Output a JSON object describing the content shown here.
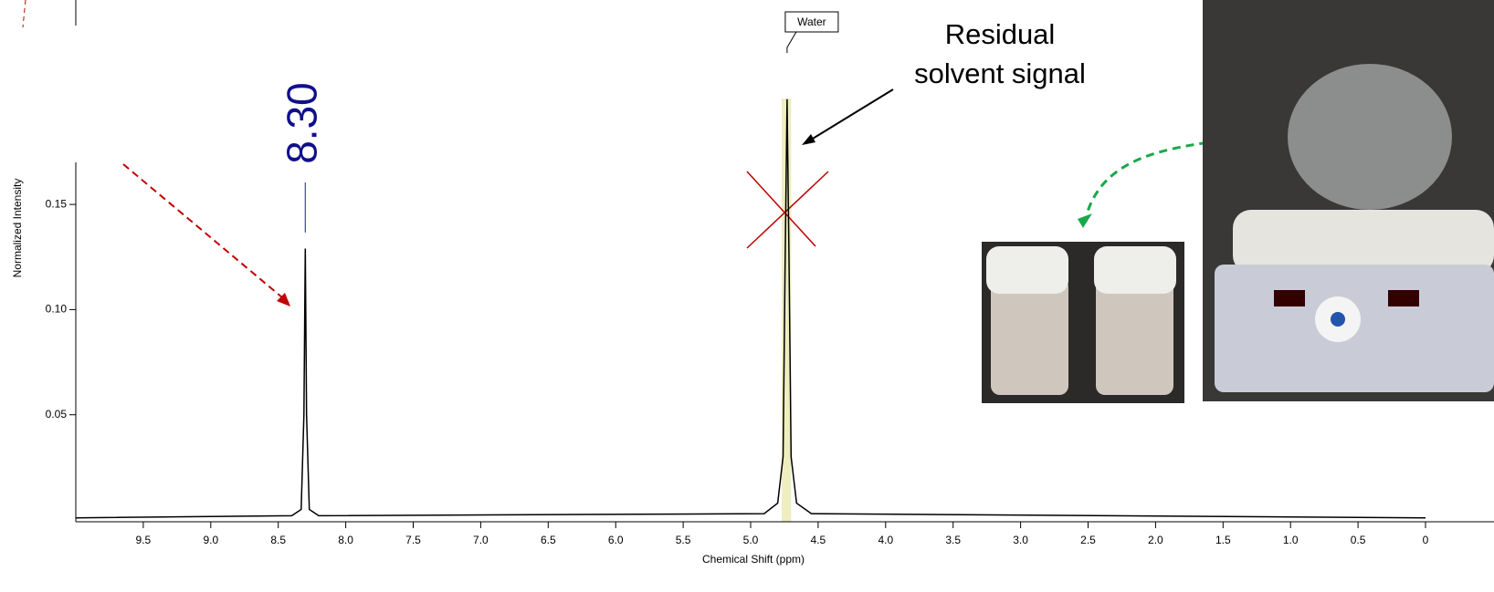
{
  "chart_data": {
    "type": "line",
    "x_label": "Chemical Shift (ppm)",
    "y_label": "Normalized Intensity",
    "x": [
      10,
      8.4,
      8.33,
      8.31,
      8.3,
      8.29,
      8.27,
      8.2,
      4.9,
      4.8,
      4.76,
      4.745,
      4.73,
      4.715,
      4.7,
      4.66,
      4.55,
      0
    ],
    "values": [
      0.001,
      0.002,
      0.005,
      0.05,
      0.129,
      0.05,
      0.005,
      0.002,
      0.003,
      0.008,
      0.03,
      0.12,
      0.2,
      0.12,
      0.03,
      0.008,
      0.003,
      0.001
    ],
    "color": "#000000",
    "highlight": [
      4.77,
      4.7
    ],
    "highlight_color": "#eeeec0",
    "xlim": [
      10,
      0
    ],
    "ylim": [
      0,
      0.17
    ],
    "xticks": [
      9.5,
      {
        "value": 9,
        "label": "9.0"
      },
      8.5,
      {
        "value": 8,
        "label": "8.0"
      },
      7.5,
      {
        "value": 7,
        "label": "7.0"
      },
      6.5,
      {
        "value": 6,
        "label": "6.0"
      },
      5.5,
      {
        "value": 5,
        "label": "5.0"
      },
      4.5,
      {
        "value": 4,
        "label": "4.0"
      },
      3.5,
      {
        "value": 3,
        "label": "3.0"
      },
      2.5,
      {
        "value": 2,
        "label": "2.0"
      },
      1.5,
      {
        "value": 1,
        "label": "1.0"
      },
      0.5,
      0
    ],
    "yticks": [
      0.05,
      {
        "value": 0.1,
        "label": "0.10"
      },
      0.15
    ],
    "peak_label": {
      "value": 8.3,
      "label": "8.30"
    },
    "water_label": {
      "value": 4.73,
      "label": "Water"
    },
    "annotation": [
      "Residual",
      "solvent signal"
    ]
  }
}
